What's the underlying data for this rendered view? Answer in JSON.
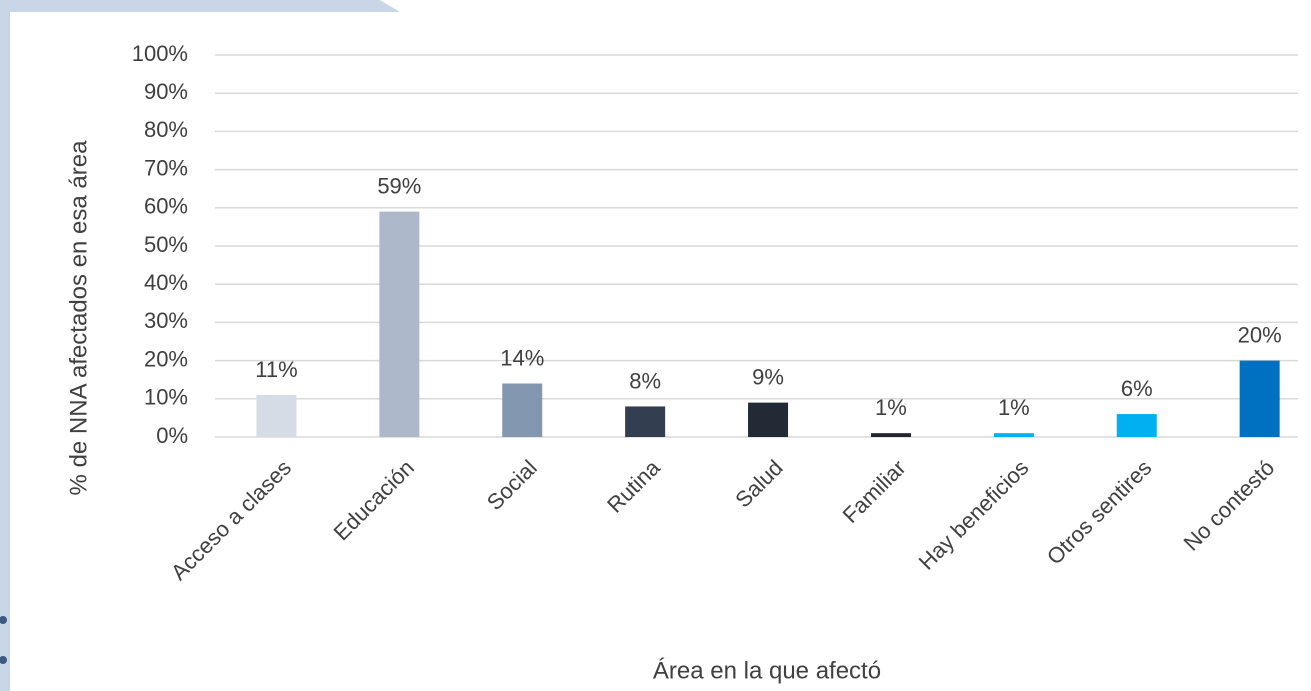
{
  "chart_data": {
    "type": "bar",
    "categories": [
      "Acceso a clases",
      "Educación",
      "Social",
      "Rutina",
      "Salud",
      "Familiar",
      "Hay beneficios",
      "Otros sentires",
      "No contestó"
    ],
    "values": [
      11,
      59,
      14,
      8,
      9,
      1,
      1,
      6,
      20
    ],
    "value_labels": [
      "11%",
      "59%",
      "14%",
      "8%",
      "9%",
      "1%",
      "1%",
      "6%",
      "20%"
    ],
    "colors": [
      "#d6dce5",
      "#adb9ca",
      "#8497b0",
      "#333f50",
      "#222a35",
      "#1e2530",
      "#00b0f0",
      "#00b0f0",
      "#0070c0"
    ],
    "ylim": [
      0,
      100
    ],
    "yticks": [
      {
        "value": 0,
        "label": "0%"
      },
      {
        "value": 10,
        "label": "10%"
      },
      {
        "value": 20,
        "label": "20%"
      },
      {
        "value": 30,
        "label": "30%"
      },
      {
        "value": 40,
        "label": "40%"
      },
      {
        "value": 50,
        "label": "50%"
      },
      {
        "value": 60,
        "label": "60%"
      },
      {
        "value": 70,
        "label": "70%"
      },
      {
        "value": 80,
        "label": "80%"
      },
      {
        "value": 90,
        "label": "90%"
      },
      {
        "value": 100,
        "label": "100%"
      }
    ],
    "y_label": "% de NNA afectados en esa área",
    "x_label": "Área en la que afectó",
    "grid": true
  }
}
